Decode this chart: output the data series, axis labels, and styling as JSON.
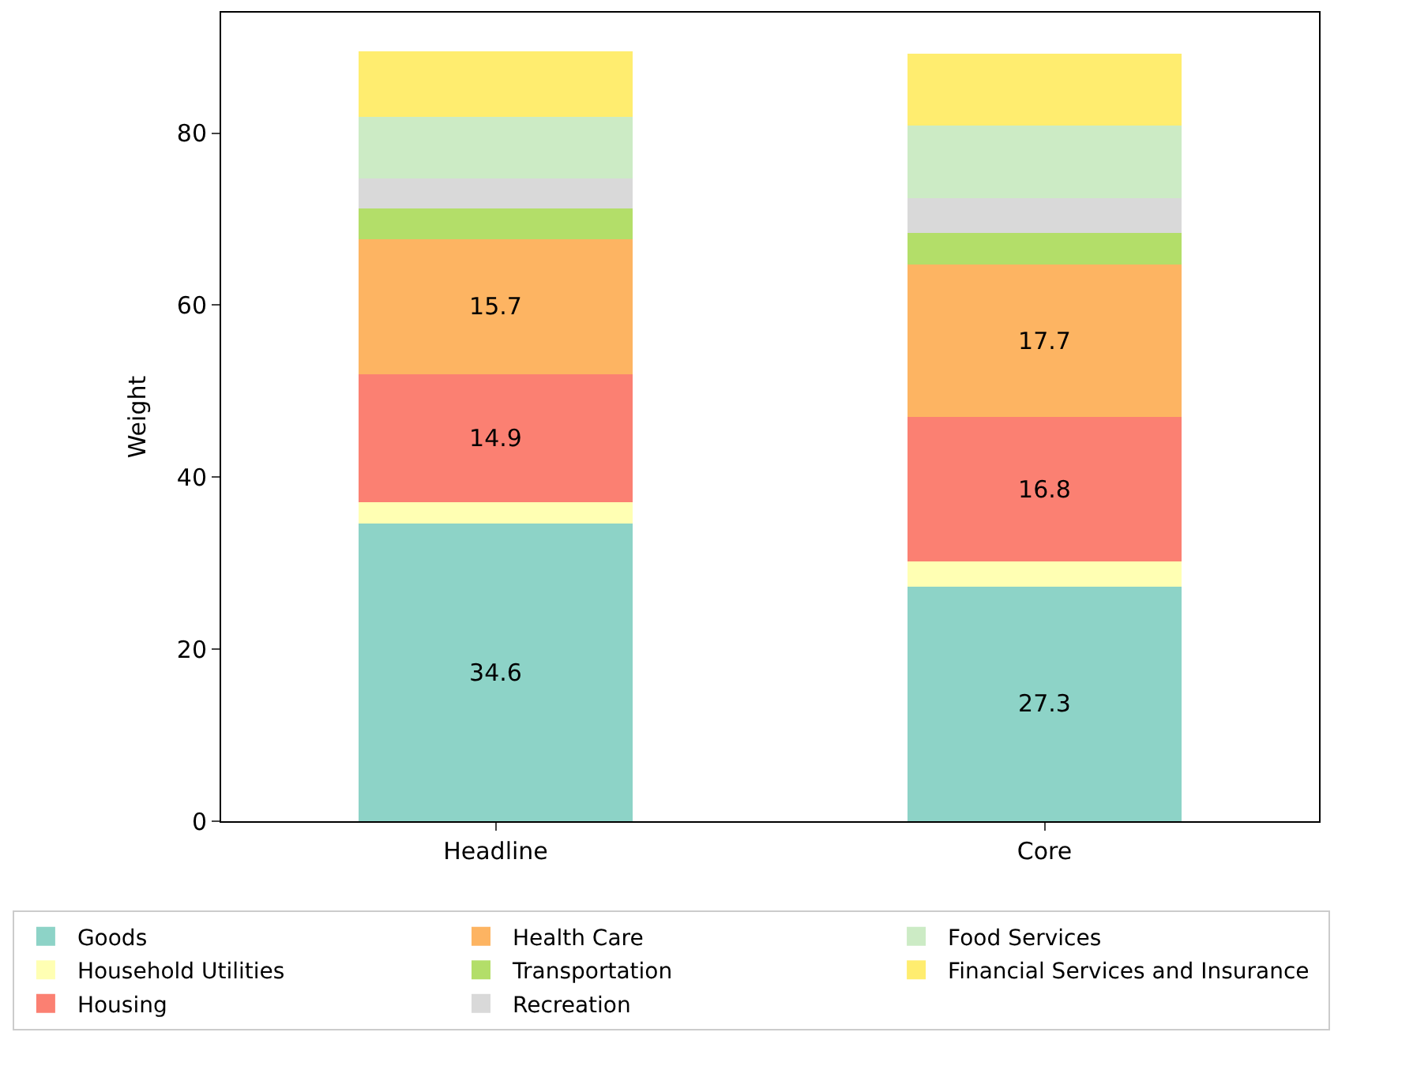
{
  "chart_data": {
    "type": "bar",
    "stacked": true,
    "ylabel": "Weight",
    "categories": [
      "Headline",
      "Core"
    ],
    "series": [
      {
        "name": "Goods",
        "color": "#8dd3c7",
        "values": [
          34.6,
          27.3
        ],
        "value_labels": [
          "34.6",
          "27.3"
        ]
      },
      {
        "name": "Household Utilities",
        "color": "#ffffb3",
        "values": [
          2.5,
          2.9
        ]
      },
      {
        "name": "Housing",
        "color": "#fb8072",
        "values": [
          14.9,
          16.8
        ],
        "value_labels": [
          "14.9",
          "16.8"
        ]
      },
      {
        "name": "Health Care",
        "color": "#fdb462",
        "values": [
          15.7,
          17.7
        ],
        "value_labels": [
          "15.7",
          "17.7"
        ]
      },
      {
        "name": "Transportation",
        "color": "#b3de69",
        "values": [
          3.5,
          3.7
        ]
      },
      {
        "name": "Recreation",
        "color": "#d9d9d9",
        "values": [
          3.5,
          4.0
        ]
      },
      {
        "name": "Food Services",
        "color": "#ccebc5",
        "values": [
          7.2,
          8.5
        ]
      },
      {
        "name": "Financial Services and Insurance",
        "color": "#ffed6f",
        "values": [
          7.6,
          8.3
        ]
      }
    ],
    "ylim": [
      0,
      94
    ],
    "yticks": [
      0,
      20,
      40,
      60,
      80
    ],
    "legend": "bottom"
  }
}
